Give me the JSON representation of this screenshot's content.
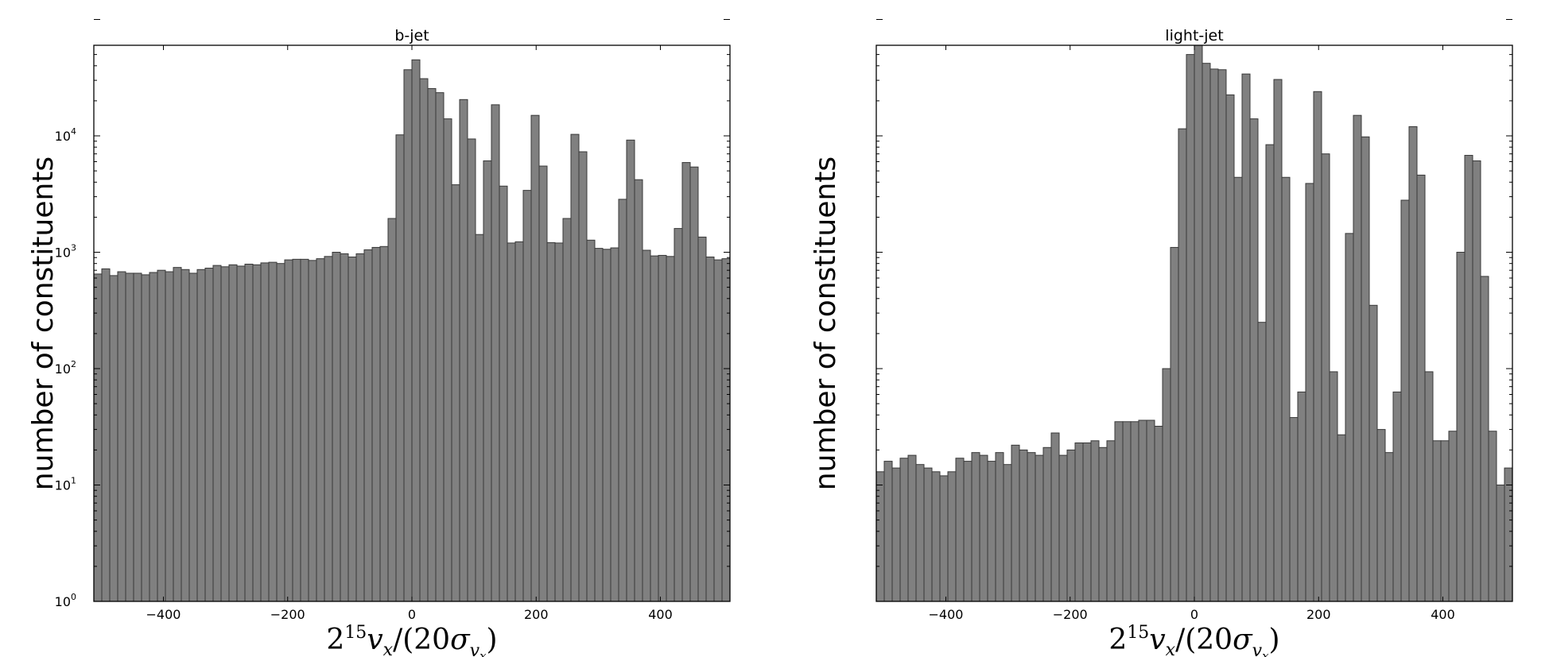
{
  "chart_data": [
    {
      "type": "bar",
      "title": "b-jet",
      "ylabel": "number of constituents",
      "xlabel": "2^15 v_x/(20σ_{v_x})",
      "xlim": [
        -512,
        512
      ],
      "ylim": [
        1,
        60000
      ],
      "yscale": "log",
      "xticks": [
        -400,
        -200,
        0,
        200,
        400
      ],
      "xtick_labels": [
        "−400",
        "−200",
        "0",
        "200",
        "400"
      ],
      "yticks": [
        1,
        10,
        100,
        1000,
        10000
      ],
      "ytick_labels": [
        {
          "base": "10",
          "exp": "0"
        },
        {
          "base": "10",
          "exp": "1"
        },
        {
          "base": "10",
          "exp": "2"
        },
        {
          "base": "10",
          "exp": "3"
        },
        {
          "base": "10",
          "exp": "4"
        }
      ],
      "bin_edges_start": -512,
      "bin_width": 12.8,
      "values": [
        650,
        720,
        630,
        680,
        660,
        660,
        640,
        670,
        700,
        680,
        740,
        710,
        660,
        710,
        730,
        770,
        750,
        780,
        760,
        790,
        780,
        810,
        820,
        800,
        860,
        870,
        870,
        850,
        880,
        920,
        1000,
        970,
        910,
        970,
        1050,
        1100,
        1120,
        1950,
        10200,
        37000,
        45000,
        31000,
        25500,
        23500,
        14000,
        3800,
        20500,
        9400,
        1420,
        6100,
        18500,
        3700,
        1200,
        1230,
        3400,
        15000,
        5500,
        1210,
        1200,
        1950,
        10300,
        7300,
        1270,
        1080,
        1060,
        1090,
        2850,
        9200,
        4200,
        1040,
        930,
        940,
        920,
        1600,
        5900,
        5400,
        1350,
        910,
        860,
        880
      ]
    },
    {
      "type": "bar",
      "title": "light-jet",
      "ylabel": "number of constituents",
      "xlabel": "2^15 v_x/(20σ_{v_x})",
      "xlim": [
        -512,
        512
      ],
      "ylim": [
        1,
        60000
      ],
      "yscale": "log",
      "xticks": [
        -400,
        -200,
        0,
        200,
        400
      ],
      "xtick_labels": [
        "−400",
        "−200",
        "0",
        "200",
        "400"
      ],
      "yticks": [],
      "ytick_labels": [],
      "bin_edges_start": -512,
      "bin_width": 12.8,
      "values": [
        13,
        16,
        14,
        17,
        18,
        15,
        14,
        13,
        12,
        13,
        17,
        16,
        19,
        18,
        16,
        19,
        15,
        22,
        20,
        19,
        18,
        21,
        28,
        18,
        20,
        23,
        23,
        24,
        21,
        24,
        35,
        35,
        35,
        36,
        36,
        32,
        100,
        1100,
        11500,
        50000,
        62000,
        42000,
        37500,
        37000,
        22500,
        4400,
        34000,
        14000,
        250,
        8400,
        30500,
        4400,
        38,
        63,
        3900,
        24000,
        7000,
        94,
        27,
        1450,
        15000,
        9800,
        350,
        30,
        19,
        63,
        2800,
        12000,
        4600,
        94,
        24,
        24,
        29,
        1000,
        6800,
        6100,
        620,
        29,
        10,
        14
      ]
    }
  ]
}
